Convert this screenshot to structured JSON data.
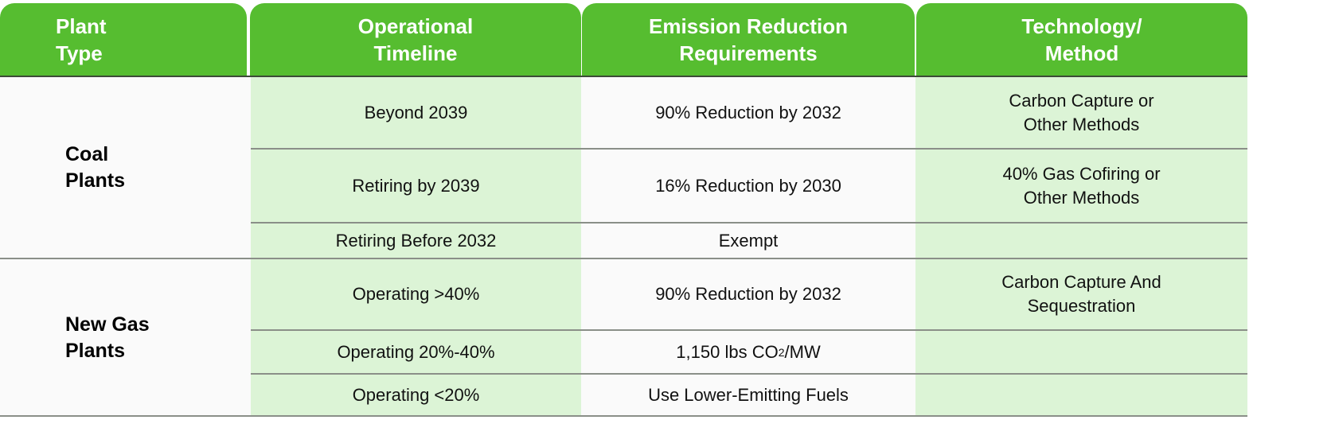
{
  "headers": [
    "Plant\nType",
    "Operational\nTimeline",
    "Emission Reduction\nRequirements",
    "Technology/\nMethod"
  ],
  "groups": [
    {
      "name": "Coal\nPlants",
      "rows": [
        {
          "timeline": "Beyond 2039",
          "requirement": "90% Reduction by 2032",
          "method": "Carbon Capture or\nOther Methods"
        },
        {
          "timeline": "Retiring by 2039",
          "requirement": "16% Reduction by 2030",
          "method": "40% Gas Cofiring or\nOther Methods"
        },
        {
          "timeline": "Retiring Before 2032",
          "requirement": "Exempt",
          "method": ""
        }
      ]
    },
    {
      "name": "New Gas\nPlants",
      "rows": [
        {
          "timeline": "Operating >40%",
          "requirement": "90% Reduction by 2032",
          "method": "Carbon Capture And\nSequestration"
        },
        {
          "timeline": "Operating 20%-40%",
          "requirement_parts": [
            "1,150 lbs CO",
            "2",
            "/MW"
          ],
          "method": ""
        },
        {
          "timeline": "Operating <20%",
          "requirement": "Use Lower-Emitting Fuels",
          "method": ""
        }
      ]
    }
  ],
  "colors": {
    "header": "#56bd30",
    "green_column": "#dcf4d6",
    "body": "#fafafa"
  }
}
